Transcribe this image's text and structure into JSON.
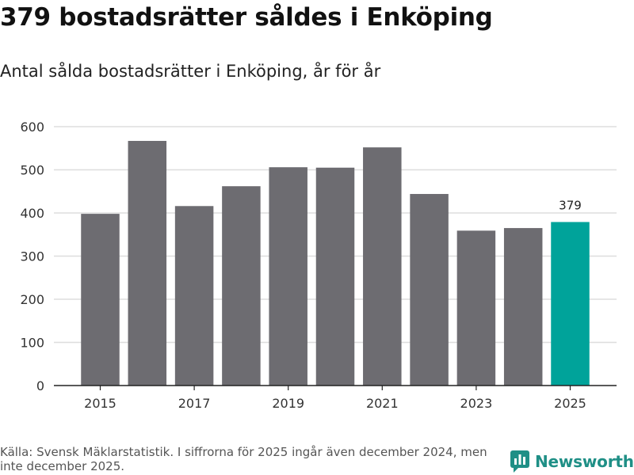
{
  "header": {
    "title": "379 bostadsrätter såldes i Enköping",
    "subtitle": "Antal sålda bostadsrätter i Enköping, år för år"
  },
  "chart_data": {
    "type": "bar",
    "categories": [
      "2015",
      "2016",
      "2017",
      "2018",
      "2019",
      "2020",
      "2021",
      "2022",
      "2023",
      "2024",
      "2025"
    ],
    "values": [
      398,
      567,
      416,
      462,
      506,
      505,
      552,
      444,
      359,
      365,
      379
    ],
    "x_tick_labels": [
      "2015",
      "2017",
      "2019",
      "2021",
      "2023",
      "2025"
    ],
    "y_ticks": [
      0,
      100,
      200,
      300,
      400,
      500,
      600
    ],
    "ylim": [
      0,
      600
    ],
    "highlight_category": "2025",
    "data_labels": [
      {
        "category": "2025",
        "text": "379"
      }
    ],
    "colors": {
      "bar": "#6d6c71",
      "highlight": "#00a39a",
      "grid": "#dddddd",
      "axis": "#222222"
    },
    "grid": true,
    "xlabel": "",
    "ylabel": ""
  },
  "footer": {
    "source": "Källa: Svensk Mäklarstatistik. I siffrorna för 2025 ingår även december 2024, men inte december 2025.",
    "brand": "Newsworthy",
    "brand_icon": "newsworthy-logo-icon",
    "brand_color": "#1f8f86"
  }
}
